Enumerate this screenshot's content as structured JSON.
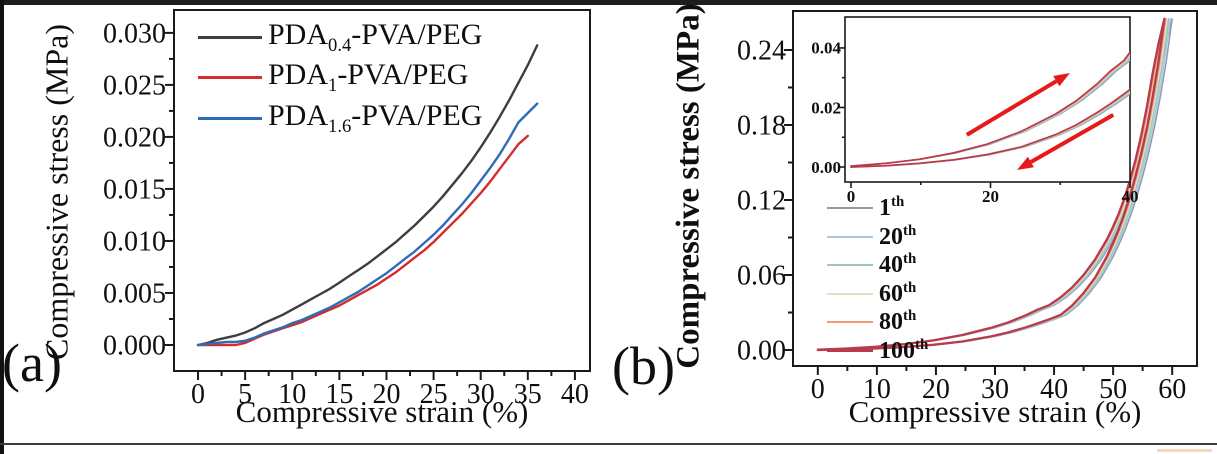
{
  "figure": {
    "panel_a_label": "(a)",
    "panel_b_label": "(b)"
  },
  "chart_data": [
    {
      "id": "panel_a",
      "type": "line",
      "title": "",
      "xlabel": "Compressive strain (%)",
      "ylabel": "Compressive stress (MPa)",
      "xlim": [
        -2.55,
        41.6
      ],
      "ylim": [
        -0.0025,
        0.0322
      ],
      "grid": false,
      "legend_position": "top-left-inside",
      "xticks": {
        "values": [
          0,
          5,
          10,
          15,
          20,
          25,
          30,
          35,
          40
        ],
        "labels": [
          "0",
          "5",
          "10",
          "15",
          "20",
          "25",
          "30",
          "35",
          "40"
        ],
        "minor": [
          2.5,
          7.5,
          12.5,
          17.5,
          22.5,
          27.5,
          32.5,
          37.5
        ]
      },
      "yticks": {
        "values": [
          0,
          0.005,
          0.01,
          0.015,
          0.02,
          0.025,
          0.03
        ],
        "labels": [
          "0.000",
          "0.005",
          "0.010",
          "0.015",
          "0.020",
          "0.025",
          "0.030"
        ],
        "minor": [
          0.0025,
          0.0075,
          0.0125,
          0.0175,
          0.0225,
          0.0275
        ]
      },
      "series": [
        {
          "name_pre": "PDA",
          "name_sub": "0.4",
          "name_post": "-PVA/PEG",
          "color": "#3e3e3e",
          "width": 2.4,
          "points": [
            [
              0,
              0
            ],
            [
              1,
              0.0002
            ],
            [
              2,
              0.0005
            ],
            [
              3,
              0.0007
            ],
            [
              4,
              0.0009
            ],
            [
              5,
              0.0012
            ],
            [
              6,
              0.0016
            ],
            [
              7,
              0.0021
            ],
            [
              8,
              0.0025
            ],
            [
              9,
              0.0029
            ],
            [
              10,
              0.0034
            ],
            [
              11,
              0.0039
            ],
            [
              12,
              0.0044
            ],
            [
              13,
              0.0049
            ],
            [
              14,
              0.0054
            ],
            [
              15,
              0.006
            ],
            [
              16,
              0.0066
            ],
            [
              17,
              0.0072
            ],
            [
              18,
              0.0078
            ],
            [
              19,
              0.0085
            ],
            [
              20,
              0.0092
            ],
            [
              21,
              0.0099
            ],
            [
              22,
              0.0107
            ],
            [
              23,
              0.0115
            ],
            [
              24,
              0.0124
            ],
            [
              25,
              0.0133
            ],
            [
              26,
              0.0143
            ],
            [
              27,
              0.0154
            ],
            [
              28,
              0.0165
            ],
            [
              29,
              0.0177
            ],
            [
              30,
              0.019
            ],
            [
              31,
              0.0204
            ],
            [
              32,
              0.0219
            ],
            [
              33,
              0.0235
            ],
            [
              34,
              0.0252
            ],
            [
              35,
              0.0269
            ],
            [
              36,
              0.0288
            ]
          ]
        },
        {
          "name_pre": "PDA",
          "name_sub": "1",
          "name_post": "-PVA/PEG",
          "color": "#d42c2c",
          "width": 2.4,
          "points": [
            [
              0,
              0
            ],
            [
              1,
              0
            ],
            [
              2,
              0
            ],
            [
              3,
              0
            ],
            [
              4,
              0
            ],
            [
              5,
              0.0002
            ],
            [
              6,
              0.0006
            ],
            [
              7,
              0.001
            ],
            [
              8,
              0.0013
            ],
            [
              9,
              0.0016
            ],
            [
              10,
              0.0019
            ],
            [
              11,
              0.0022
            ],
            [
              12,
              0.0026
            ],
            [
              13,
              0.003
            ],
            [
              14,
              0.0034
            ],
            [
              15,
              0.0038
            ],
            [
              16,
              0.0043
            ],
            [
              17,
              0.0048
            ],
            [
              18,
              0.0053
            ],
            [
              19,
              0.0058
            ],
            [
              20,
              0.0064
            ],
            [
              21,
              0.007
            ],
            [
              22,
              0.0077
            ],
            [
              23,
              0.0084
            ],
            [
              24,
              0.0091
            ],
            [
              25,
              0.0099
            ],
            [
              26,
              0.0108
            ],
            [
              27,
              0.0117
            ],
            [
              28,
              0.0126
            ],
            [
              29,
              0.0136
            ],
            [
              30,
              0.0146
            ],
            [
              31,
              0.0157
            ],
            [
              32,
              0.0169
            ],
            [
              33,
              0.0181
            ],
            [
              34,
              0.0193
            ],
            [
              35,
              0.0201
            ]
          ]
        },
        {
          "name_pre": "PDA",
          "name_sub": "1.6",
          "name_post": "-PVA/PEG",
          "color": "#2d6db8",
          "width": 2.4,
          "points": [
            [
              0,
              0
            ],
            [
              1,
              0.0001
            ],
            [
              2,
              0.0002
            ],
            [
              3,
              0.0003
            ],
            [
              4,
              0.0003
            ],
            [
              5,
              0.0004
            ],
            [
              6,
              0.0007
            ],
            [
              7,
              0.0011
            ],
            [
              8,
              0.0014
            ],
            [
              9,
              0.0017
            ],
            [
              10,
              0.0021
            ],
            [
              11,
              0.0024
            ],
            [
              12,
              0.0028
            ],
            [
              13,
              0.0032
            ],
            [
              14,
              0.0036
            ],
            [
              15,
              0.0041
            ],
            [
              16,
              0.0046
            ],
            [
              17,
              0.0051
            ],
            [
              18,
              0.0057
            ],
            [
              19,
              0.0063
            ],
            [
              20,
              0.0069
            ],
            [
              21,
              0.0076
            ],
            [
              22,
              0.0083
            ],
            [
              23,
              0.009
            ],
            [
              24,
              0.0098
            ],
            [
              25,
              0.0106
            ],
            [
              26,
              0.0115
            ],
            [
              27,
              0.0125
            ],
            [
              28,
              0.0135
            ],
            [
              29,
              0.0146
            ],
            [
              30,
              0.0158
            ],
            [
              31,
              0.017
            ],
            [
              32,
              0.0183
            ],
            [
              33,
              0.0198
            ],
            [
              34,
              0.0214
            ],
            [
              35,
              0.0223
            ],
            [
              36,
              0.0232
            ]
          ]
        }
      ]
    },
    {
      "id": "panel_b",
      "type": "line",
      "title": "",
      "xlabel": "Compressive strain (%)",
      "ylabel": "Compressive stress (MPa)",
      "xlim": [
        -4.2,
        64.2
      ],
      "ylim": [
        -0.0128,
        0.2712
      ],
      "grid": false,
      "legend_position": "middle-left-inside",
      "xticks": {
        "values": [
          0,
          10,
          20,
          30,
          40,
          50,
          60
        ],
        "labels": [
          "0",
          "10",
          "20",
          "30",
          "40",
          "50",
          "60"
        ],
        "minor": [
          5,
          15,
          25,
          35,
          45,
          55
        ]
      },
      "yticks": {
        "values": [
          0,
          0.06,
          0.12,
          0.18,
          0.24
        ],
        "labels": [
          "0.00",
          "0.06",
          "0.12",
          "0.18",
          "0.24"
        ],
        "minor": [
          0.03,
          0.09,
          0.15,
          0.21
        ]
      },
      "cycles": [
        {
          "label": "1",
          "sup": "th",
          "color": "#9298ac",
          "width": 1.5,
          "strain_scale": 1.0
        },
        {
          "label": "20",
          "sup": "th",
          "color": "#a6c8e0",
          "width": 1.5,
          "strain_scale": 0.995
        },
        {
          "label": "40",
          "sup": "th",
          "color": "#9cc7bb",
          "width": 1.5,
          "strain_scale": 0.99
        },
        {
          "label": "60",
          "sup": "th",
          "color": "#dfe2c2",
          "width": 1.5,
          "strain_scale": 0.986
        },
        {
          "label": "80",
          "sup": "th",
          "color": "#f19a74",
          "width": 1.5,
          "strain_scale": 0.982
        },
        {
          "label": "100",
          "sup": "th",
          "color": "#b83a4d",
          "width": 2.3,
          "strain_scale": 0.978
        }
      ],
      "base_loading": [
        [
          0,
          0.0003
        ],
        [
          5,
          0.0012
        ],
        [
          10,
          0.0026
        ],
        [
          15,
          0.0047
        ],
        [
          20,
          0.0077
        ],
        [
          25,
          0.012
        ],
        [
          30,
          0.0178
        ],
        [
          33,
          0.0222
        ],
        [
          36,
          0.0278
        ],
        [
          38,
          0.0322
        ],
        [
          40,
          0.0358
        ],
        [
          42,
          0.042
        ],
        [
          44,
          0.05
        ],
        [
          46,
          0.06
        ],
        [
          48,
          0.0725
        ],
        [
          50,
          0.088
        ],
        [
          51,
          0.0975
        ],
        [
          52,
          0.108
        ],
        [
          53,
          0.1205
        ],
        [
          54,
          0.135
        ],
        [
          55,
          0.152
        ],
        [
          56,
          0.172
        ],
        [
          57,
          0.1955
        ],
        [
          58,
          0.222
        ],
        [
          59,
          0.2455
        ],
        [
          60,
          0.265
        ]
      ],
      "base_unloading": [
        [
          60,
          0.265
        ],
        [
          59,
          0.231
        ],
        [
          58,
          0.203
        ],
        [
          57,
          0.1785
        ],
        [
          56,
          0.1575
        ],
        [
          55,
          0.139
        ],
        [
          54,
          0.1225
        ],
        [
          53,
          0.108
        ],
        [
          52,
          0.0955
        ],
        [
          51,
          0.0845
        ],
        [
          50,
          0.0745
        ],
        [
          48,
          0.058
        ],
        [
          46,
          0.0455
        ],
        [
          44,
          0.0355
        ],
        [
          42,
          0.028
        ],
        [
          40,
          0.0245
        ],
        [
          38,
          0.0212
        ],
        [
          36,
          0.0182
        ],
        [
          33,
          0.0141
        ],
        [
          30,
          0.0109
        ],
        [
          25,
          0.0068
        ],
        [
          20,
          0.0042
        ],
        [
          15,
          0.0024
        ],
        [
          10,
          0.0012
        ],
        [
          5,
          0.0004
        ],
        [
          0,
          0
        ]
      ],
      "inset": {
        "xlim": [
          -0.86,
          40
        ],
        "ylim": [
          -0.00504,
          0.0504
        ],
        "xticks": {
          "values": [
            0,
            20,
            40
          ],
          "labels": [
            "0",
            "20",
            "40"
          ],
          "minor": [
            10,
            30
          ]
        },
        "yticks": {
          "values": [
            0,
            0.02,
            0.04
          ],
          "labels": [
            "0.00",
            "0.02",
            "0.04"
          ],
          "minor": [
            0.01,
            0.03
          ]
        },
        "arrow_color": "#e61a1a",
        "arrows": [
          {
            "name": "loading-direction-arrow",
            "from": [
              16.6,
              0.0108
            ],
            "to": [
              31.4,
              0.0316
            ]
          },
          {
            "name": "unloading-direction-arrow",
            "from": [
              37.6,
              0.0175
            ],
            "to": [
              23.8,
              -0.001
            ]
          }
        ]
      }
    }
  ]
}
